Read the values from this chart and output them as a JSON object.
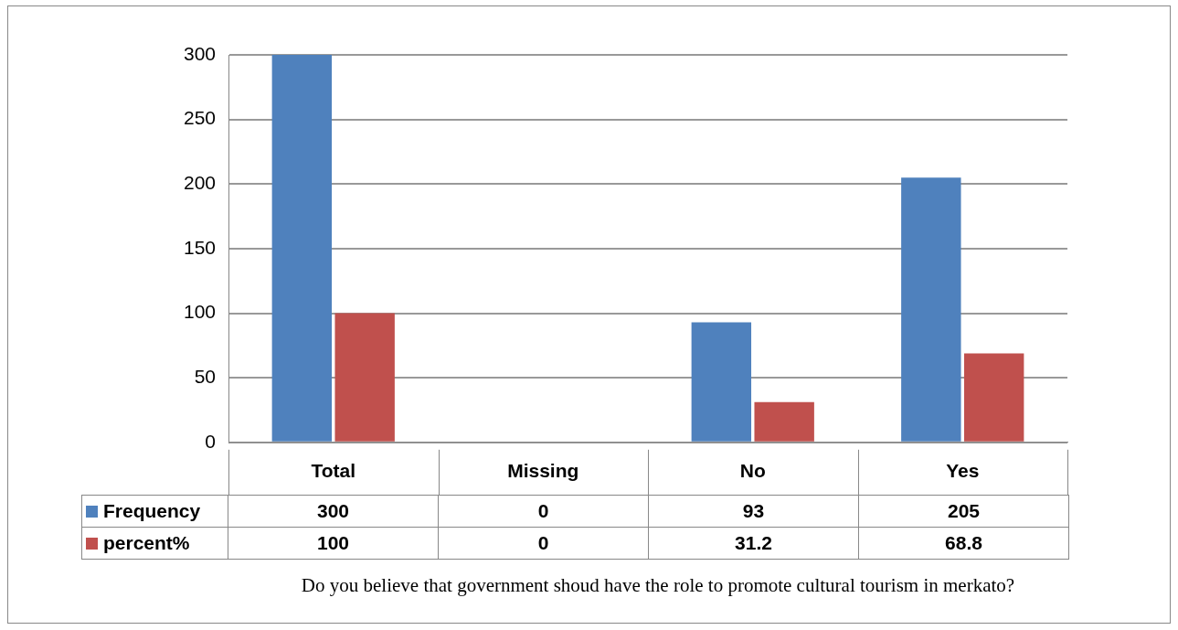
{
  "chart_data": {
    "type": "bar",
    "categories": [
      "Total",
      "Missing",
      "No",
      "Yes"
    ],
    "series": [
      {
        "name": "Frequency",
        "color": "#4f81bd",
        "values": [
          300,
          0,
          93,
          205
        ]
      },
      {
        "name": "percent%",
        "color": "#c0504d",
        "values": [
          100,
          0,
          31.2,
          68.8
        ]
      }
    ],
    "ylim": [
      0,
      300
    ],
    "yticks": [
      0,
      50,
      100,
      150,
      200,
      250,
      300
    ],
    "grid": "y",
    "legend": "bottom",
    "data_labels": true,
    "annotations": [
      "Do you believe that government shoud have the role to promote cultural tourism in merkato?"
    ]
  }
}
